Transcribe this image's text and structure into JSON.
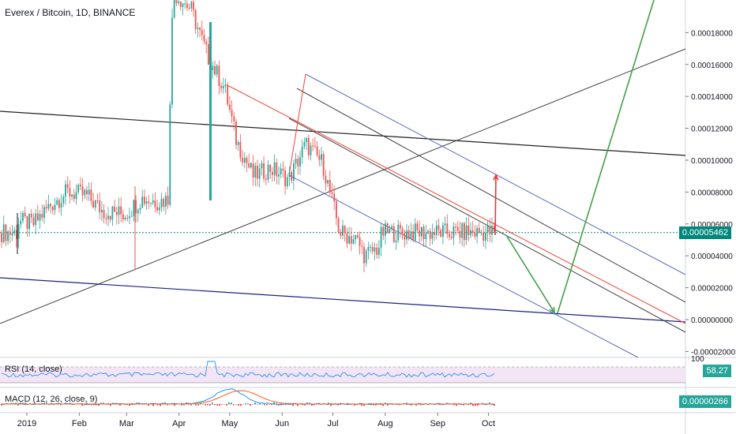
{
  "header": {
    "title": "Everex / Bitcoin, 1D, BINANCE"
  },
  "colors": {
    "up": "#26a69a",
    "down": "#ef5350",
    "price_line": "#00897b",
    "rsi": "#2196f3",
    "rsi_band": "#f3e5f5",
    "macd": "#2196f3",
    "signal": "#ff5722",
    "pitchfork": "#5c6bc0",
    "fork_median": "#f44336",
    "trend": "#212121",
    "arrow_up": "#e53935",
    "arrow_green": "#43a047"
  },
  "indicators": {
    "rsi_label": "RSI (14, close)",
    "rsi_value": "58.27",
    "macd_label": "MACD (12, 26, close, 9)",
    "macd_value": "0.00000266"
  },
  "chart_data": {
    "type": "candlestick",
    "title": "Everex / Bitcoin, 1D, BINANCE",
    "x_ticks": [
      "2019",
      "Feb",
      "Mar",
      "Apr",
      "May",
      "Jun",
      "Jul",
      "Aug",
      "Sep",
      "Oct"
    ],
    "y_ticks": [
      "0.00018000",
      "0.00016000",
      "0.00014000",
      "0.00012000",
      "0.00010000",
      "0.00008000",
      "0.00006000",
      "0.00004000",
      "0.00002000",
      "0.00000000",
      "-0.00002000"
    ],
    "ylim": [
      -2.2e-05,
      0.000199
    ],
    "last_price": "0.00005462",
    "rsi_top_tick": "100",
    "price_path": [
      [
        "2018-12-26",
        6.2e-05
      ],
      [
        "2019-01-05",
        6e-05
      ],
      [
        "2019-01-15",
        7.2e-05
      ],
      [
        "2019-01-25",
        8e-05
      ],
      [
        "2019-02-05",
        7.8e-05
      ],
      [
        "2019-02-15",
        6.8e-05
      ],
      [
        "2019-02-28",
        6.6e-05
      ],
      [
        "2019-03-10",
        7.6e-05
      ],
      [
        "2019-03-20",
        7.4e-05
      ],
      [
        "2019-03-26",
        7.6e-05
      ],
      [
        "2019-03-27",
        0.00017
      ],
      [
        "2019-03-29",
        0.000205
      ],
      [
        "2019-04-08",
        0.000195
      ],
      [
        "2019-04-18",
        0.000165
      ],
      [
        "2019-04-28",
        0.000145
      ],
      [
        "2019-05-05",
        0.000112
      ],
      [
        "2019-05-15",
        9e-05
      ],
      [
        "2019-05-25",
        9.5e-05
      ],
      [
        "2019-06-05",
        8.8e-05
      ],
      [
        "2019-06-15",
        0.00011
      ],
      [
        "2019-06-25",
        9.8e-05
      ],
      [
        "2019-07-05",
        5.5e-05
      ],
      [
        "2019-07-15",
        5e-05
      ],
      [
        "2019-07-20",
        4e-05
      ],
      [
        "2019-07-28",
        4.5e-05
      ],
      [
        "2019-07-30",
        5.46e-05
      ]
    ]
  }
}
